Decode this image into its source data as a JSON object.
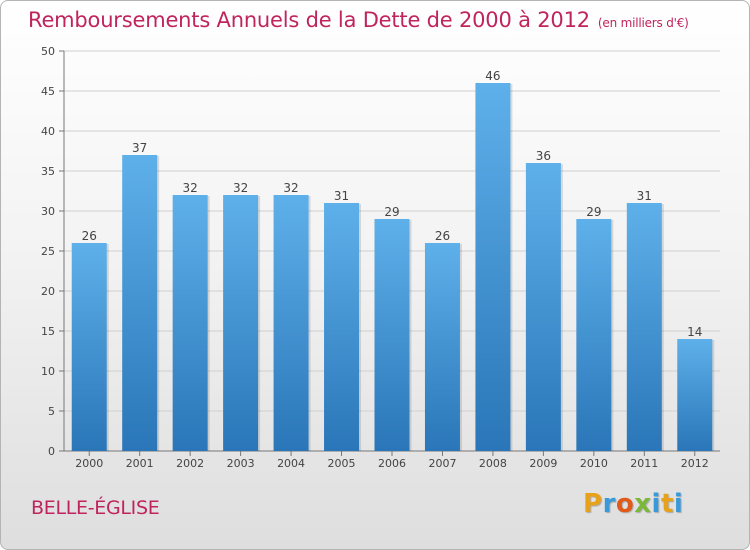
{
  "header": {
    "title": "Remboursements Annuels de la Dette de 2000 à 2012",
    "subtitle": "(en milliers d'€)"
  },
  "footer": {
    "commune": "BELLE-ÉGLISE",
    "brand_letters": [
      "P",
      "r",
      "o",
      "x",
      "i",
      "t",
      "i"
    ],
    "brand_colors": [
      "#e8a21a",
      "#3a9ad9",
      "#e05a1c",
      "#7bb83a",
      "#3a9ad9",
      "#e8a21a",
      "#3a9ad9"
    ]
  },
  "colors": {
    "bar_top": "#5eb0ea",
    "bar_bottom": "#2a76b8",
    "title": "#c0245c",
    "axis": "#777777",
    "grid": "#d0d0d0"
  },
  "chart_data": {
    "type": "bar",
    "categories": [
      "2000",
      "2001",
      "2002",
      "2003",
      "2004",
      "2005",
      "2006",
      "2007",
      "2008",
      "2009",
      "2010",
      "2011",
      "2012"
    ],
    "values": [
      26,
      37,
      32,
      32,
      32,
      31,
      29,
      26,
      46,
      36,
      29,
      31,
      14
    ],
    "ylim": [
      0,
      50
    ],
    "yticks": [
      0,
      5,
      10,
      15,
      20,
      25,
      30,
      35,
      40,
      45,
      50
    ],
    "grid": true,
    "data_labels": true
  }
}
